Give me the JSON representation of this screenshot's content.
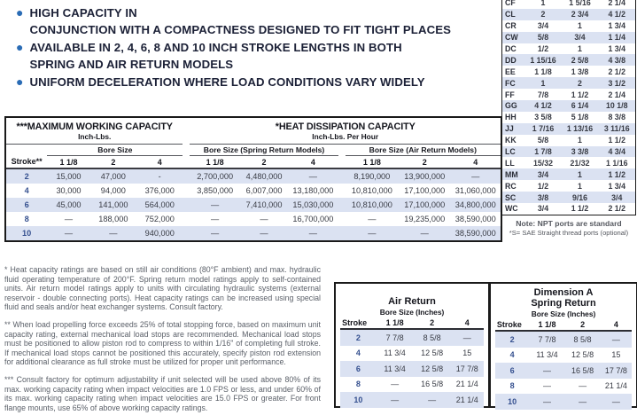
{
  "colors": {
    "accent_blue": "#2a6cb5",
    "row_shade": "#dbe2f2"
  },
  "bullets": [
    "HIGH CAPACITY IN\nCONJUNCTION WITH A COMPACTNESS DESIGNED TO FIT TIGHT PLACES",
    "AVAILABLE IN 2, 4, 6, 8 AND 10 INCH STROKE LENGTHS IN BOTH\nSPRING AND AIR RETURN MODELS",
    "UNIFORM DECELERATION WHERE LOAD CONDITIONS VARY WIDELY"
  ],
  "capacity_table": {
    "left_title": "***MAXIMUM WORKING CAPACITY",
    "left_subtitle": "Inch-Lbs.",
    "right_title": "*HEAT DISSIPATION CAPACITY",
    "right_subtitle": "Inch-Lbs. Per Hour",
    "group_headers": [
      "Bore Size",
      "Bore Size (Spring Return Models)",
      "Bore Size (Air Return Models)"
    ],
    "col_headers": [
      "Stroke**",
      "1 1/8",
      "2",
      "4",
      "1 1/8",
      "2",
      "4",
      "1 1/8",
      "2",
      "4"
    ],
    "rows": [
      [
        "2",
        "15,000",
        "47,000",
        "-",
        "2,700,000",
        "4,480,000",
        "—",
        "8,190,000",
        "13,900,000",
        "—"
      ],
      [
        "4",
        "30,000",
        "94,000",
        "376,000",
        "3,850,000",
        "6,007,000",
        "13,180,000",
        "10,810,000",
        "17,100,000",
        "31,060,000"
      ],
      [
        "6",
        "45,000",
        "141,000",
        "564,000",
        "—",
        "7,410,000",
        "15,030,000",
        "10,810,000",
        "17,100,000",
        "34,800,000"
      ],
      [
        "8",
        "—",
        "188,000",
        "752,000",
        "—",
        "—",
        "16,700,000",
        "—",
        "19,235,000",
        "38,590,000"
      ],
      [
        "10",
        "—",
        "—",
        "940,000",
        "—",
        "—",
        "—",
        "—",
        "—",
        "38,590,000"
      ]
    ]
  },
  "dimensions_table": {
    "rows": [
      [
        "CF",
        "1",
        "1 5/16",
        "2 1/4"
      ],
      [
        "CL",
        "2",
        "2 3/4",
        "4 1/2"
      ],
      [
        "CR",
        "3/4",
        "1",
        "1 3/4"
      ],
      [
        "CW",
        "5/8",
        "3/4",
        "1 1/4"
      ],
      [
        "DC",
        "1/2",
        "1",
        "1 3/4"
      ],
      [
        "DD",
        "1 15/16",
        "2 5/8",
        "4 3/8"
      ],
      [
        "EE",
        "1 1/8",
        "1 3/8",
        "2 1/2"
      ],
      [
        "FC",
        "1",
        "2",
        "3 1/2"
      ],
      [
        "FF",
        "7/8",
        "1 1/2",
        "2 1/4"
      ],
      [
        "GG",
        "4 1/2",
        "6 1/4",
        "10 1/8"
      ],
      [
        "HH",
        "3 5/8",
        "5 1/8",
        "8 3/8"
      ],
      [
        "JJ",
        "1 7/16",
        "1 13/16",
        "3 11/16"
      ],
      [
        "KK",
        "5/8",
        "1",
        "1 1/2"
      ],
      [
        "LC",
        "1 7/8",
        "3 3/8",
        "4 3/4"
      ],
      [
        "LL",
        "15/32",
        "21/32",
        "1 1/16"
      ],
      [
        "MM",
        "3/4",
        "1",
        "1 1/2"
      ],
      [
        "RC",
        "1/2",
        "1",
        "1 3/4"
      ],
      [
        "SC",
        "3/8",
        "9/16",
        "3/4"
      ],
      [
        "WC",
        "3/4",
        "1 1/2",
        "2 1/2"
      ]
    ],
    "note_line1": "Note: NPT ports are standard",
    "note_line2": "*S= SAE Straight thread ports (optional)"
  },
  "air_return_table": {
    "title": "Air Return",
    "subtitle": "Bore Size (Inches)",
    "col_headers": [
      "Stroke",
      "1 1/8",
      "2",
      "4"
    ],
    "rows": [
      [
        "2",
        "7 7/8",
        "8 5/8",
        "—"
      ],
      [
        "4",
        "11 3/4",
        "12 5/8",
        "15"
      ],
      [
        "6",
        "11 3/4",
        "12 5/8",
        "17 7/8"
      ],
      [
        "8",
        "—",
        "16 5/8",
        "21 1/4"
      ],
      [
        "10",
        "—",
        "—",
        "21 1/4"
      ]
    ]
  },
  "dimension_a_table": {
    "title": "Dimension A\nSpring Return",
    "subtitle": "Bore Size (Inches)",
    "col_headers": [
      "Stroke",
      "1 1/8",
      "2",
      "4"
    ],
    "rows": [
      [
        "2",
        "7 7/8",
        "8 5/8",
        "—"
      ],
      [
        "4",
        "11 3/4",
        "12 5/8",
        "15"
      ],
      [
        "6",
        "—",
        "16 5/8",
        "17 7/8"
      ],
      [
        "8",
        "—",
        "—",
        "21 1/4"
      ],
      [
        "10",
        "—",
        "—",
        "—"
      ]
    ]
  },
  "footnotes": [
    "* Heat capacity ratings are based on still air conditions (80°F ambient) and max. hydraulic fluid operating temperature of 200°F. Spring return model ratings apply to self-contained units. Air return model ratings apply to units with circulating hydraulic systems (external reservoir - double connecting ports). Heat capacity ratings can be increased using special fluid and seals and/or heat exchanger systems. Consult factory.",
    "** When load propelling force exceeds 25% of total stopping force, based on maximum unit capacity rating, external mechanical load stops are recommended. Mechanical load stops must be positioned to allow piston rod to compress to within 1/16\" of completing full stroke. If mechanical load stops cannot be positioned this accurately, specify piston rod extension for additional clearance as full stroke must be utilized for proper unit performance.",
    "*** Consult factory for optimum adjustability if unit selected will be used above 80% of its max. working capacity rating when impact velocities are 1.0 FPS or less, and under 60% of its max. working capacity rating when impact velocities are 15.0 FPS or greater. For front flange mounts, use 65% of above working capacity ratings."
  ]
}
